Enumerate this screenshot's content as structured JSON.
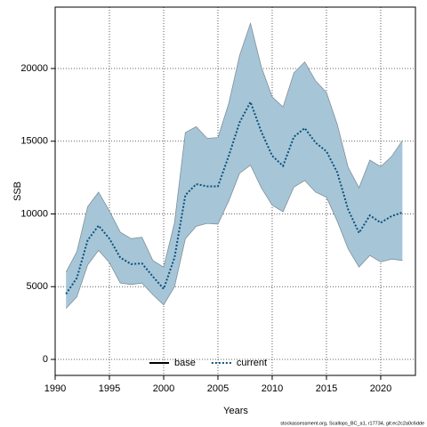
{
  "chart_data": {
    "type": "line",
    "xlabel": "Years",
    "ylabel": "SSB",
    "footer": "stockassessment.org, Scallops_BC_a1, r17734, git:ec2c2a0c6dde",
    "x": [
      1991,
      1992,
      1993,
      1994,
      1995,
      1996,
      1997,
      1998,
      1999,
      2000,
      2001,
      2002,
      2003,
      2004,
      2005,
      2006,
      2007,
      2008,
      2009,
      2010,
      2011,
      2012,
      2013,
      2014,
      2015,
      2016,
      2017,
      2018,
      2019,
      2020,
      2021,
      2022
    ],
    "series": [
      {
        "name": "current",
        "color": "#0b4f7a",
        "dash": "dotted",
        "values": [
          4500,
          5600,
          8200,
          9200,
          8300,
          7000,
          6550,
          6600,
          5700,
          4850,
          7000,
          11300,
          12050,
          11900,
          11900,
          14000,
          16300,
          17700,
          15650,
          14000,
          13300,
          15300,
          15900,
          14900,
          14300,
          12850,
          10300,
          8700,
          9900,
          9400,
          9850,
          10100
        ]
      }
    ],
    "band": {
      "color": "#a6c6d8",
      "edge": "#7f8f99",
      "upper": [
        6000,
        7400,
        10500,
        11500,
        10200,
        8750,
        8300,
        8400,
        6800,
        6350,
        9400,
        15600,
        16000,
        15200,
        15250,
        17600,
        20900,
        23100,
        20100,
        18050,
        17350,
        19700,
        20450,
        19150,
        18350,
        16150,
        13200,
        11800,
        13700,
        13250,
        13950,
        15050
      ],
      "lower": [
        3500,
        4300,
        6500,
        7500,
        6650,
        5250,
        5150,
        5250,
        4450,
        3750,
        5000,
        8300,
        9150,
        9350,
        9300,
        10900,
        12800,
        13350,
        11800,
        10600,
        10150,
        11850,
        12300,
        11500,
        11150,
        9500,
        7600,
        6350,
        7150,
        6700,
        6900,
        6800
      ]
    },
    "legend": [
      {
        "name": "base",
        "color": "#000000",
        "dash": "solid"
      },
      {
        "name": "current",
        "color": "#0b4f7a",
        "dash": "dotted"
      }
    ],
    "legend_position": "bottom",
    "xlim": [
      1990,
      2023.2
    ],
    "ylim": [
      -1100,
      24220
    ],
    "xticks": [
      1990,
      1995,
      2000,
      2005,
      2010,
      2015,
      2020
    ],
    "yticks": [
      0,
      5000,
      10000,
      15000,
      20000
    ],
    "grid": true
  }
}
